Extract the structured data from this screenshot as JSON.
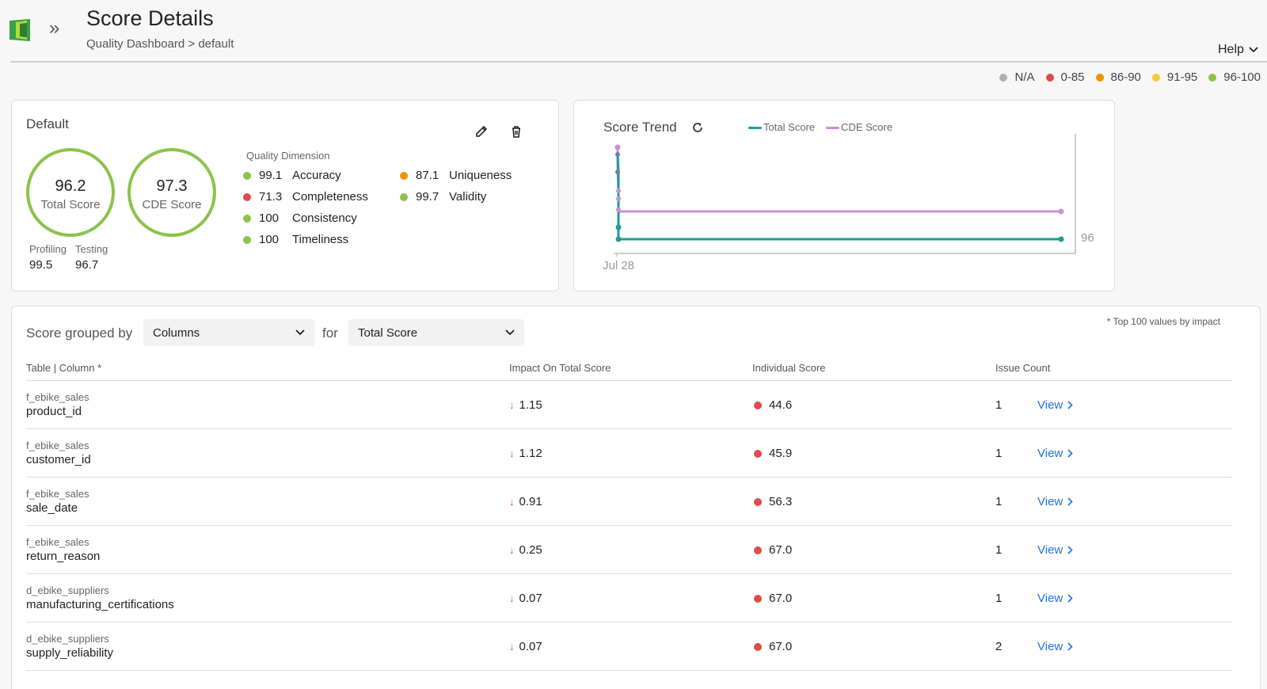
{
  "header": {
    "title": "Score Details",
    "breadcrumb": "Quality Dashboard > default",
    "help_label": "Help"
  },
  "legend": [
    {
      "label": "N/A",
      "color": "#b0b0b0"
    },
    {
      "label": "0-85",
      "color": "#e04b4b"
    },
    {
      "label": "86-90",
      "color": "#f39200"
    },
    {
      "label": "91-95",
      "color": "#f8c93a"
    },
    {
      "label": "96-100",
      "color": "#8bc34a"
    }
  ],
  "default_card": {
    "title": "Default",
    "total_score": {
      "value": "96.2",
      "label": "Total Score"
    },
    "cde_score": {
      "value": "97.3",
      "label": "CDE Score"
    },
    "profiling": {
      "label": "Profiling",
      "value": "99.5"
    },
    "testing": {
      "label": "Testing",
      "value": "96.7"
    },
    "quality_dimension_title": "Quality Dimension",
    "dimensions": [
      {
        "value": "99.1",
        "label": "Accuracy",
        "color": "#8bc34a"
      },
      {
        "value": "71.3",
        "label": "Completeness",
        "color": "#e04b4b"
      },
      {
        "value": "100",
        "label": "Consistency",
        "color": "#8bc34a"
      },
      {
        "value": "100",
        "label": "Timeliness",
        "color": "#8bc34a"
      },
      {
        "value": "87.1",
        "label": "Uniqueness",
        "color": "#f39200"
      },
      {
        "value": "99.7",
        "label": "Validity",
        "color": "#8bc34a"
      }
    ]
  },
  "trend_card": {
    "title": "Score Trend",
    "legend": [
      {
        "label": "Total Score",
        "color": "#1a9e8f"
      },
      {
        "label": "CDE Score",
        "color": "#c88fd6"
      }
    ],
    "x_tick": "Jul 28",
    "y_tick": "96"
  },
  "table_card": {
    "group_label": "Score grouped by",
    "group_select": "Columns",
    "for_label": "for",
    "score_select": "Total Score",
    "top_note": "* Top 100 values by impact",
    "columns": [
      "Table | Column *",
      "Impact On Total Score",
      "Individual Score",
      "Issue Count"
    ],
    "rows": [
      {
        "table": "f_ebike_sales",
        "column": "product_id",
        "impact": "1.15",
        "score": "44.6",
        "issues": "1",
        "view": "View"
      },
      {
        "table": "f_ebike_sales",
        "column": "customer_id",
        "impact": "1.12",
        "score": "45.9",
        "issues": "1",
        "view": "View"
      },
      {
        "table": "f_ebike_sales",
        "column": "sale_date",
        "impact": "0.91",
        "score": "56.3",
        "issues": "1",
        "view": "View"
      },
      {
        "table": "f_ebike_sales",
        "column": "return_reason",
        "impact": "0.25",
        "score": "67.0",
        "issues": "1",
        "view": "View"
      },
      {
        "table": "d_ebike_suppliers",
        "column": "manufacturing_certifications",
        "impact": "0.07",
        "score": "67.0",
        "issues": "1",
        "view": "View"
      },
      {
        "table": "d_ebike_suppliers",
        "column": "supply_reliability",
        "impact": "0.07",
        "score": "67.0",
        "issues": "2",
        "view": "View"
      }
    ]
  }
}
